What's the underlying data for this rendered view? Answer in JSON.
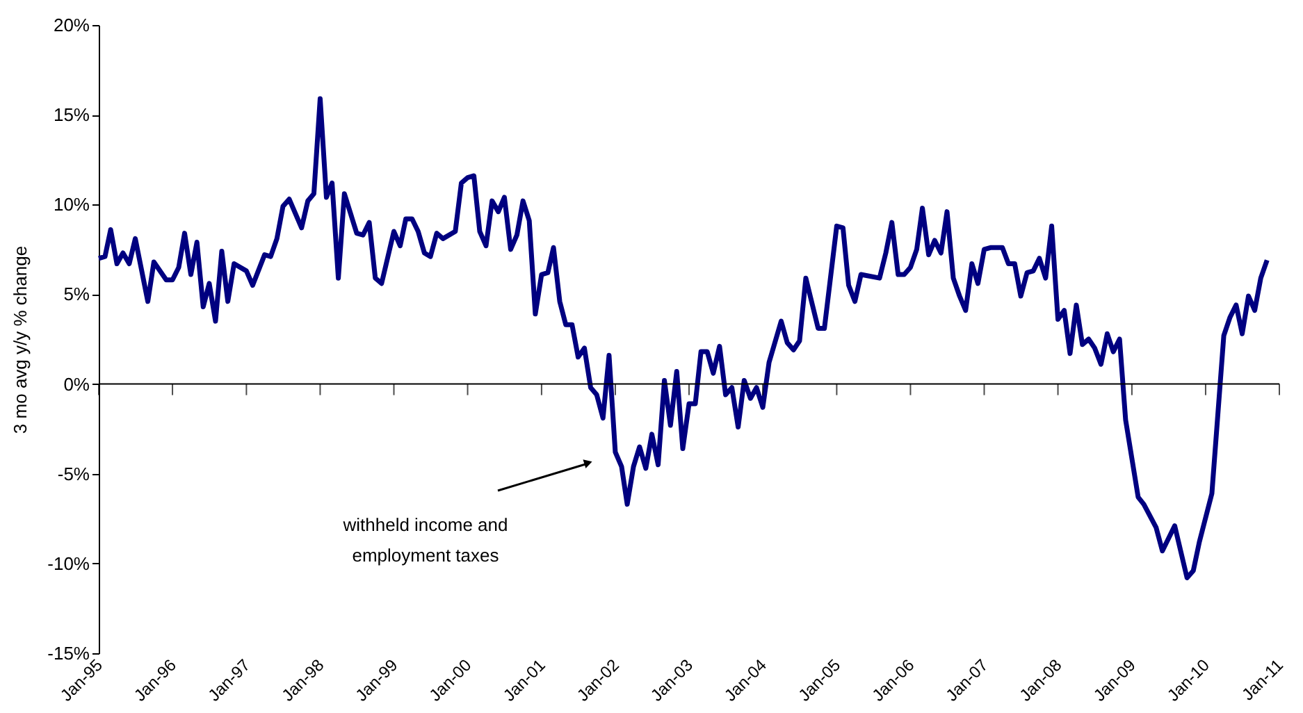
{
  "chart_data": {
    "type": "line",
    "ylabel": "3 mo avg y/y % change",
    "x": [
      "1995-01",
      "1995-02",
      "1995-03",
      "1995-04",
      "1995-05",
      "1995-06",
      "1995-07",
      "1995-09",
      "1995-10",
      "1995-12",
      "1996-01",
      "1996-02",
      "1996-03",
      "1996-04",
      "1996-05",
      "1996-06",
      "1996-07",
      "1996-08",
      "1996-09",
      "1996-10",
      "1996-11",
      "1997-01",
      "1997-02",
      "1997-04",
      "1997-05",
      "1997-06",
      "1997-07",
      "1997-08",
      "1997-10",
      "1997-11",
      "1997-12",
      "1998-01",
      "1998-02",
      "1998-03",
      "1998-04",
      "1998-05",
      "1998-07",
      "1998-08",
      "1998-09",
      "1998-10",
      "1998-11",
      "1999-01",
      "1999-02",
      "1999-03",
      "1999-04",
      "1999-05",
      "1999-06",
      "1999-07",
      "1999-08",
      "1999-09",
      "1999-11",
      "1999-12",
      "2000-01",
      "2000-02",
      "2000-03",
      "2000-04",
      "2000-05",
      "2000-06",
      "2000-07",
      "2000-08",
      "2000-09",
      "2000-10",
      "2000-11",
      "2000-12",
      "2001-01",
      "2001-02",
      "2001-03",
      "2001-04",
      "2001-05",
      "2001-06",
      "2001-07",
      "2001-08",
      "2001-09",
      "2001-10",
      "2001-11",
      "2001-12",
      "2002-01",
      "2002-02",
      "2002-03",
      "2002-04",
      "2002-05",
      "2002-06",
      "2002-07",
      "2002-08",
      "2002-09",
      "2002-10",
      "2002-11",
      "2002-12",
      "2003-01",
      "2003-02",
      "2003-03",
      "2003-04",
      "2003-05",
      "2003-06",
      "2003-07",
      "2003-08",
      "2003-09",
      "2003-10",
      "2003-11",
      "2003-12",
      "2004-01",
      "2004-02",
      "2004-04",
      "2004-05",
      "2004-06",
      "2004-07",
      "2004-08",
      "2004-10",
      "2004-11",
      "2005-01",
      "2005-02",
      "2005-03",
      "2005-04",
      "2005-05",
      "2005-08",
      "2005-09",
      "2005-10",
      "2005-11",
      "2005-12",
      "2006-01",
      "2006-02",
      "2006-03",
      "2006-04",
      "2006-05",
      "2006-06",
      "2006-07",
      "2006-08",
      "2006-09",
      "2006-10",
      "2006-11",
      "2006-12",
      "2007-01",
      "2007-02",
      "2007-03",
      "2007-04",
      "2007-05",
      "2007-06",
      "2007-07",
      "2007-08",
      "2007-09",
      "2007-10",
      "2007-11",
      "2007-12",
      "2008-01",
      "2008-02",
      "2008-03",
      "2008-04",
      "2008-05",
      "2008-06",
      "2008-07",
      "2008-08",
      "2008-09",
      "2008-10",
      "2008-11",
      "2008-12",
      "2009-02",
      "2009-03",
      "2009-05",
      "2009-06",
      "2009-08",
      "2009-10",
      "2009-11",
      "2009-12",
      "2010-02",
      "2010-04",
      "2010-05",
      "2010-06",
      "2010-07",
      "2010-08",
      "2010-09",
      "2010-10",
      "2010-11"
    ],
    "series": [
      {
        "color": "#000080",
        "values": [
          7.0,
          7.1,
          8.6,
          6.7,
          7.3,
          6.7,
          8.1,
          4.6,
          6.8,
          5.8,
          5.8,
          6.5,
          8.4,
          6.1,
          7.9,
          4.3,
          5.6,
          3.5,
          7.4,
          4.6,
          6.7,
          6.3,
          5.5,
          7.2,
          7.1,
          8.1,
          9.9,
          10.3,
          8.7,
          10.2,
          10.6,
          15.9,
          10.4,
          11.2,
          5.9,
          10.6,
          8.4,
          8.3,
          9.0,
          5.9,
          5.6,
          8.5,
          7.7,
          9.2,
          9.2,
          8.5,
          7.3,
          7.1,
          8.4,
          8.1,
          8.5,
          11.2,
          11.5,
          11.6,
          8.5,
          7.7,
          10.2,
          9.6,
          10.4,
          7.5,
          8.3,
          10.2,
          9.1,
          3.9,
          6.1,
          6.2,
          7.6,
          4.6,
          3.3,
          3.3,
          1.5,
          2.0,
          -0.2,
          -0.6,
          -1.9,
          1.6,
          -3.8,
          -4.6,
          -6.7,
          -4.6,
          -3.5,
          -4.7,
          -2.8,
          -4.5,
          0.2,
          -2.3,
          0.7,
          -3.6,
          -1.1,
          -1.1,
          1.8,
          1.8,
          0.6,
          2.1,
          -0.6,
          -0.2,
          -2.4,
          0.2,
          -0.8,
          -0.2,
          -1.3,
          1.2,
          3.5,
          2.3,
          1.9,
          2.4,
          5.9,
          3.1,
          3.1,
          8.8,
          8.7,
          5.5,
          4.6,
          6.1,
          5.9,
          7.3,
          9.0,
          6.1,
          6.1,
          6.5,
          7.5,
          9.8,
          7.2,
          8.0,
          7.3,
          9.6,
          5.9,
          4.9,
          4.1,
          6.7,
          5.6,
          7.5,
          7.6,
          7.6,
          7.6,
          6.7,
          6.7,
          4.9,
          6.2,
          6.3,
          7.0,
          5.9,
          8.8,
          3.6,
          4.1,
          1.7,
          4.4,
          2.2,
          2.5,
          2.0,
          1.1,
          2.8,
          1.8,
          2.5,
          -2.0,
          -6.3,
          -6.7,
          -8.0,
          -9.3,
          -7.9,
          -10.8,
          -10.4,
          -8.8,
          -6.1,
          2.7,
          3.7,
          4.4,
          2.8,
          4.9,
          4.1,
          5.9,
          6.9
        ]
      }
    ],
    "xlim": [
      "1995-01",
      "2011-01"
    ],
    "xticks": [
      {
        "value": "1995-01",
        "label": "Jan-95"
      },
      {
        "value": "1996-01",
        "label": "Jan-96"
      },
      {
        "value": "1997-01",
        "label": "Jan-97"
      },
      {
        "value": "1998-01",
        "label": "Jan-98"
      },
      {
        "value": "1999-01",
        "label": "Jan-99"
      },
      {
        "value": "2000-01",
        "label": "Jan-00"
      },
      {
        "value": "2001-01",
        "label": "Jan-01"
      },
      {
        "value": "2002-01",
        "label": "Jan-02"
      },
      {
        "value": "2003-01",
        "label": "Jan-03"
      },
      {
        "value": "2004-01",
        "label": "Jan-04"
      },
      {
        "value": "2005-01",
        "label": "Jan-05"
      },
      {
        "value": "2006-01",
        "label": "Jan-06"
      },
      {
        "value": "2007-01",
        "label": "Jan-07"
      },
      {
        "value": "2008-01",
        "label": "Jan-08"
      },
      {
        "value": "2009-01",
        "label": "Jan-09"
      },
      {
        "value": "2010-01",
        "label": "Jan-10"
      },
      {
        "value": "2011-01",
        "label": "Jan-11"
      }
    ],
    "ylim": [
      -15,
      20
    ],
    "yticks": [
      {
        "value": -15,
        "label": "-15%"
      },
      {
        "value": -10,
        "label": "-10%"
      },
      {
        "value": -5,
        "label": "-5%"
      },
      {
        "value": 0,
        "label": "0%"
      },
      {
        "value": 5,
        "label": "5%"
      },
      {
        "value": 10,
        "label": "10%"
      },
      {
        "value": 15,
        "label": "15%"
      },
      {
        "value": 20,
        "label": "20%"
      }
    ],
    "ref_lines": [
      {
        "axis": "y",
        "value": 0,
        "color": "#000000"
      }
    ],
    "annotations": [
      "withheld income and\nemployment taxes"
    ],
    "grid": false,
    "marker": "none",
    "line_style": "solid"
  }
}
